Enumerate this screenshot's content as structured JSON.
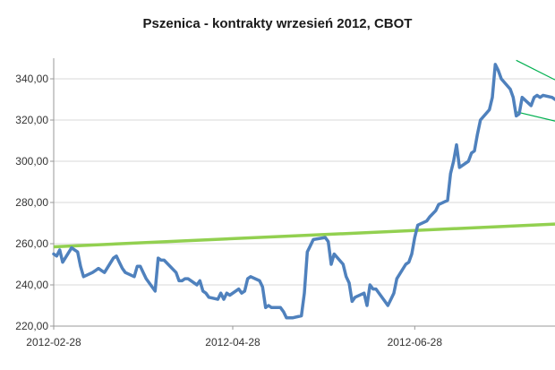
{
  "chart_data": {
    "type": "line",
    "title": "Pszenica - kontrakty wrzesień 2012, CBOT",
    "xlabel": "",
    "ylabel": "",
    "x_tick_labels": [
      "2012-02-28",
      "2012-04-28",
      "2012-06-28"
    ],
    "y_tick_labels": [
      "220,00",
      "240,00",
      "260,00",
      "280,00",
      "300,00",
      "320,00",
      "340,00"
    ],
    "y_ticks": [
      220,
      240,
      260,
      280,
      300,
      320,
      340
    ],
    "ylim": [
      220,
      350
    ],
    "xlim": [
      "2012-02-28",
      "2012-08-14"
    ],
    "grid": true,
    "legend": "none",
    "series": [
      {
        "color": "#4f81bd",
        "x": [
          "2012-02-28",
          "2012-02-29",
          "2012-03-01",
          "2012-03-02",
          "2012-03-05",
          "2012-03-06",
          "2012-03-07",
          "2012-03-08",
          "2012-03-09",
          "2012-03-12",
          "2012-03-13",
          "2012-03-14",
          "2012-03-15",
          "2012-03-16",
          "2012-03-19",
          "2012-03-20",
          "2012-03-21",
          "2012-03-22",
          "2012-03-23",
          "2012-03-26",
          "2012-03-27",
          "2012-03-28",
          "2012-03-29",
          "2012-03-30",
          "2012-04-02",
          "2012-04-03",
          "2012-04-04",
          "2012-04-05",
          "2012-04-09",
          "2012-04-10",
          "2012-04-11",
          "2012-04-12",
          "2012-04-13",
          "2012-04-16",
          "2012-04-17",
          "2012-04-18",
          "2012-04-19",
          "2012-04-20",
          "2012-04-23",
          "2012-04-24",
          "2012-04-25",
          "2012-04-26",
          "2012-04-27",
          "2012-04-30",
          "2012-05-01",
          "2012-05-02",
          "2012-05-03",
          "2012-05-04",
          "2012-05-07",
          "2012-05-08",
          "2012-05-09",
          "2012-05-10",
          "2012-05-11",
          "2012-05-14",
          "2012-05-15",
          "2012-05-16",
          "2012-05-17",
          "2012-05-18",
          "2012-05-21",
          "2012-05-22",
          "2012-05-23",
          "2012-05-24",
          "2012-05-25",
          "2012-05-29",
          "2012-05-30",
          "2012-05-31",
          "2012-06-01",
          "2012-06-04",
          "2012-06-05",
          "2012-06-06",
          "2012-06-07",
          "2012-06-08",
          "2012-06-11",
          "2012-06-12",
          "2012-06-13",
          "2012-06-14",
          "2012-06-15",
          "2012-06-18",
          "2012-06-19",
          "2012-06-20",
          "2012-06-21",
          "2012-06-22",
          "2012-06-25",
          "2012-06-26",
          "2012-06-27",
          "2012-06-28",
          "2012-06-29",
          "2012-07-02",
          "2012-07-03",
          "2012-07-05",
          "2012-07-06",
          "2012-07-09",
          "2012-07-10",
          "2012-07-11",
          "2012-07-12",
          "2012-07-13",
          "2012-07-16",
          "2012-07-17",
          "2012-07-18",
          "2012-07-19",
          "2012-07-20",
          "2012-07-23",
          "2012-07-24",
          "2012-07-25",
          "2012-07-26",
          "2012-07-27",
          "2012-07-30",
          "2012-07-31",
          "2012-08-01",
          "2012-08-02",
          "2012-08-03",
          "2012-08-06",
          "2012-08-07",
          "2012-08-08",
          "2012-08-09",
          "2012-08-10",
          "2012-08-13",
          "2012-08-14"
        ],
        "y": [
          255,
          254,
          257,
          251,
          258,
          257,
          256,
          249,
          244,
          246,
          247,
          248,
          247,
          246,
          253,
          254,
          251,
          248,
          246,
          244,
          249,
          249,
          246,
          243,
          237,
          253,
          252,
          252,
          246,
          242,
          242,
          243,
          243,
          240,
          242,
          237,
          236,
          234,
          233,
          236,
          233,
          236,
          235,
          238,
          236,
          237,
          243,
          244,
          242,
          239,
          229,
          230,
          229,
          229,
          227,
          224,
          224,
          224,
          225,
          236,
          256,
          259,
          262,
          263,
          261,
          250,
          255,
          250,
          244,
          241,
          232,
          234,
          236,
          230,
          240,
          238,
          238,
          232,
          230,
          233,
          236,
          243,
          250,
          251,
          255,
          263,
          269,
          271,
          273,
          276,
          279,
          281,
          294,
          300,
          308,
          297,
          300,
          304,
          305,
          313,
          320,
          325,
          331,
          347,
          344,
          340,
          335,
          331,
          322,
          323,
          331,
          327,
          331,
          332,
          331,
          332,
          331,
          330
        ]
      }
    ],
    "trendlines": [
      {
        "color": "#92d050",
        "x": [
          "2012-02-28",
          "2012-08-14"
        ],
        "y": [
          258.5,
          269.5
        ]
      },
      {
        "color": "#00b050",
        "x": [
          "2012-08-01",
          "2012-08-14"
        ],
        "y": [
          349,
          339.5
        ]
      },
      {
        "color": "#00b050",
        "x": [
          "2012-08-01",
          "2012-08-14"
        ],
        "y": [
          324,
          319.5
        ]
      }
    ]
  }
}
